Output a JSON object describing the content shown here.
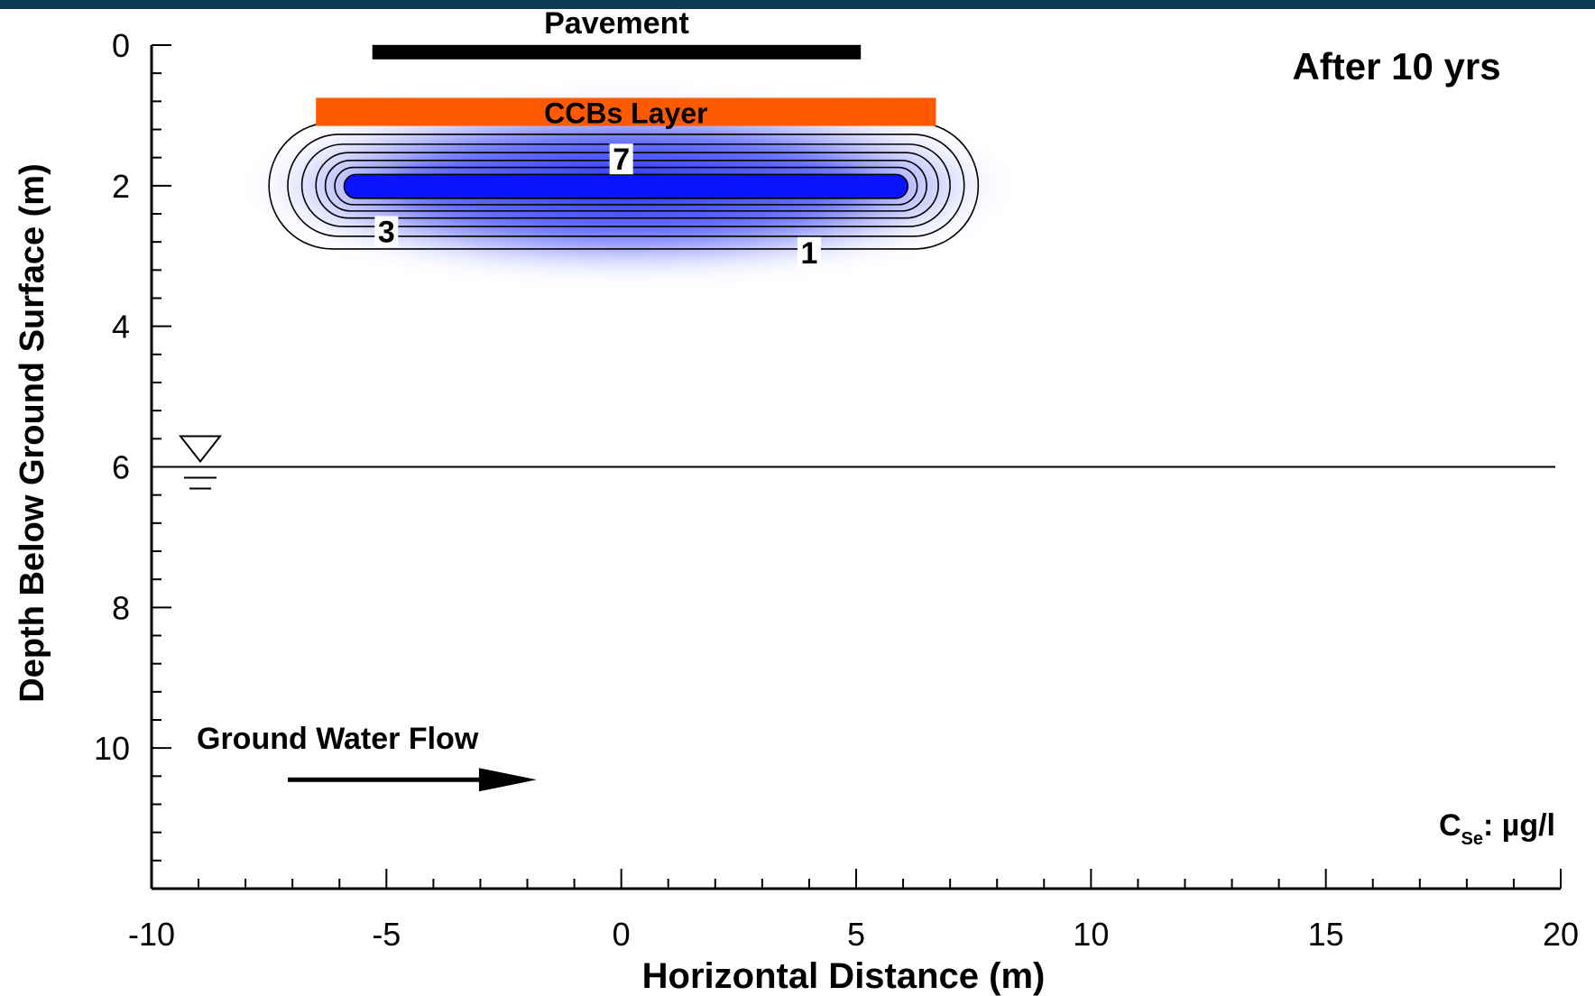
{
  "chart_data": {
    "type": "contour",
    "annotation_title": "After 10 yrs",
    "xlabel": "Horizontal Distance (m)",
    "ylabel": "Depth Below Ground Surface (m)",
    "xlim": [
      -10,
      20
    ],
    "ylim": [
      0,
      12
    ],
    "y_inverted": true,
    "x_ticks": [
      -10,
      -5,
      0,
      5,
      10,
      15,
      20
    ],
    "y_ticks": [
      0,
      2,
      4,
      6,
      8,
      10
    ],
    "x_minor_step": 1,
    "y_minor_step": 0.4,
    "units_note": {
      "prefix": "C",
      "subscript": "Se",
      "suffix": ": µg/l"
    },
    "pavement": {
      "label": "Pavement",
      "x_start": -5.3,
      "x_end": 5.1,
      "depth": 0.1,
      "color": "#000000"
    },
    "ccbs_layer": {
      "label": "CCBs Layer",
      "x_start": -6.5,
      "x_end": 6.7,
      "depth_top": 0.75,
      "depth_bottom": 1.15,
      "color": "#ff5a00"
    },
    "water_table": {
      "depth": 6.0
    },
    "ground_water_flow": {
      "label": "Ground Water Flow",
      "x_start": -7.1,
      "x_end": -1.8,
      "depth": 10.45
    },
    "plume": {
      "x_start": -7.4,
      "x_end": 7.7,
      "depth_top": 1.1,
      "depth_bottom": 2.9,
      "color": "#0a14ff",
      "contours": [
        {
          "level": 1,
          "x_start": -7.5,
          "x_end": 7.6,
          "depth_top": 1.1,
          "depth_bottom": 2.9
        },
        {
          "level": 2,
          "x_start": -7.1,
          "x_end": 7.3,
          "depth_top": 1.27,
          "depth_bottom": 2.72
        },
        {
          "level": 3,
          "x_start": -6.8,
          "x_end": 7.0,
          "depth_top": 1.41,
          "depth_bottom": 2.58
        },
        {
          "level": 4,
          "x_start": -6.5,
          "x_end": 6.75,
          "depth_top": 1.53,
          "depth_bottom": 2.46
        },
        {
          "level": 5,
          "x_start": -6.3,
          "x_end": 6.5,
          "depth_top": 1.64,
          "depth_bottom": 2.36
        },
        {
          "level": 6,
          "x_start": -6.1,
          "x_end": 6.3,
          "depth_top": 1.74,
          "depth_bottom": 2.27
        },
        {
          "level": 7,
          "x_start": -5.9,
          "x_end": 6.1,
          "depth_top": 1.84,
          "depth_bottom": 2.18
        }
      ],
      "contour_labels": [
        {
          "text": "7",
          "x": 0.0,
          "depth": 1.62
        },
        {
          "text": "3",
          "x": -5.0,
          "depth": 2.65
        },
        {
          "text": "1",
          "x": 4.0,
          "depth": 2.95
        }
      ]
    }
  }
}
